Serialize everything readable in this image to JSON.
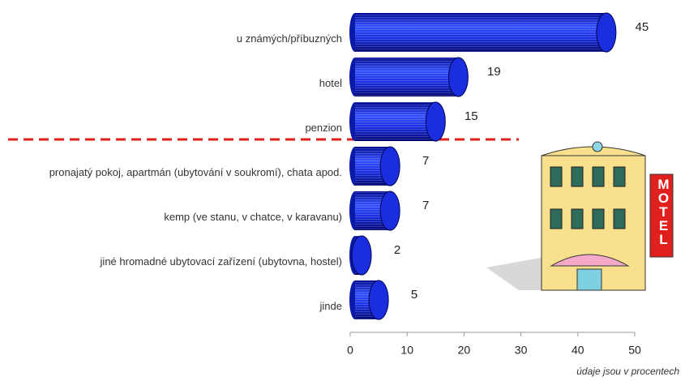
{
  "chart_data": {
    "type": "bar",
    "orientation": "horizontal",
    "categories": [
      "u známých/příbuzných",
      "hotel",
      "penzion",
      "pronajatý pokoj, apartmán (ubytování v soukromí), chata apod.",
      "kemp (ve stanu, v chatce, v karavanu)",
      "jiné hromadné ubytovací zařízení (ubytovna, hostel)",
      "jinde"
    ],
    "values": [
      45,
      19,
      15,
      7,
      7,
      2,
      5
    ],
    "color": "#1a2ee0",
    "xlim": [
      0,
      50
    ],
    "xticks": [
      0,
      10,
      20,
      30,
      40,
      50
    ],
    "footnote": "údaje jsou v procentech",
    "illustration_sign": "MOTEL"
  }
}
